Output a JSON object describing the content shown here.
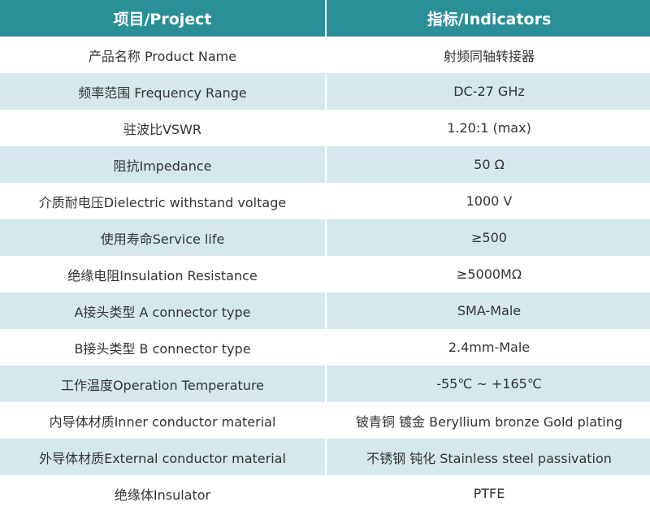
{
  "table": {
    "header": [
      "项目/Project",
      "指标/Indicators"
    ],
    "rows": [
      [
        "产品名称 Product Name",
        "射频同轴转接器"
      ],
      [
        "频率范围 Frequency Range",
        "DC-27 GHz"
      ],
      [
        "驻波比VSWR",
        "1.20:1 (max)"
      ],
      [
        "阻抗Impedance",
        "50 Ω"
      ],
      [
        "介质耐电压Dielectric withstand voltage",
        "1000 V"
      ],
      [
        "使用寿命Service life",
        "≥500"
      ],
      [
        "绝缘电阻Insulation Resistance",
        "≥5000MΩ"
      ],
      [
        "A接头类型 A connector type",
        "SMA-Male"
      ],
      [
        "B接头类型 B connector type",
        "2.4mm-Male"
      ],
      [
        "工作温度Operation Temperature",
        "-55℃ ~ +165℃"
      ],
      [
        "内导体材质Inner conductor material",
        "铍青铜 镀金 Beryllium bronze Gold plating"
      ],
      [
        "外导体材质External conductor material",
        "不锈钢 钝化 Stainless steel passivation"
      ],
      [
        "绝缘体Insulator",
        "PTFE"
      ]
    ]
  }
}
